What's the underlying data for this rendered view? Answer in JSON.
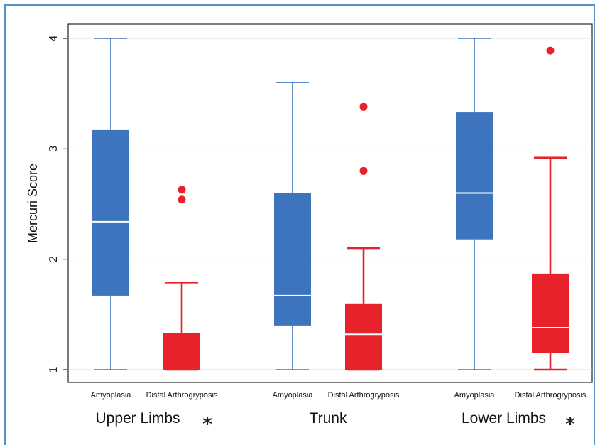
{
  "chart_data": {
    "type": "boxplot",
    "ylabel": "Mercuri Score",
    "ylim": [
      0.9,
      4.15
    ],
    "yticks": [
      1,
      2,
      3,
      4
    ],
    "grid": true,
    "groups": [
      "Upper Limbs",
      "Trunk",
      "Lower Limbs"
    ],
    "group_markers": [
      "*",
      "",
      "*"
    ],
    "categories": [
      "Amyoplasia",
      "Distal Arthrogryposis"
    ],
    "colors": {
      "Amyoplasia": "#3d74bd",
      "Distal Arthrogryposis": "#e8222b"
    },
    "boxes": [
      {
        "group": "Upper Limbs",
        "category": "Amyoplasia",
        "min": 1.0,
        "q1": 1.67,
        "median": 2.34,
        "q3": 3.17,
        "max": 4.0,
        "outliers": []
      },
      {
        "group": "Upper Limbs",
        "category": "Distal Arthrogryposis",
        "min": 1.0,
        "q1": 1.0,
        "median": 1.0,
        "q3": 1.33,
        "max": 1.79,
        "outliers": [
          2.54,
          2.63
        ]
      },
      {
        "group": "Trunk",
        "category": "Amyoplasia",
        "min": 1.0,
        "q1": 1.4,
        "median": 1.67,
        "q3": 2.6,
        "max": 3.6,
        "outliers": []
      },
      {
        "group": "Trunk",
        "category": "Distal Arthrogryposis",
        "min": 1.0,
        "q1": 1.0,
        "median": 1.32,
        "q3": 1.6,
        "max": 2.1,
        "outliers": [
          2.8,
          3.38
        ]
      },
      {
        "group": "Lower Limbs",
        "category": "Amyoplasia",
        "min": 1.0,
        "q1": 2.18,
        "median": 2.6,
        "q3": 3.33,
        "max": 4.0,
        "outliers": []
      },
      {
        "group": "Lower Limbs",
        "category": "Distal Arthrogryposis",
        "min": 1.0,
        "q1": 1.15,
        "median": 1.38,
        "q3": 1.87,
        "max": 2.92,
        "outliers": [
          3.89
        ]
      }
    ]
  }
}
